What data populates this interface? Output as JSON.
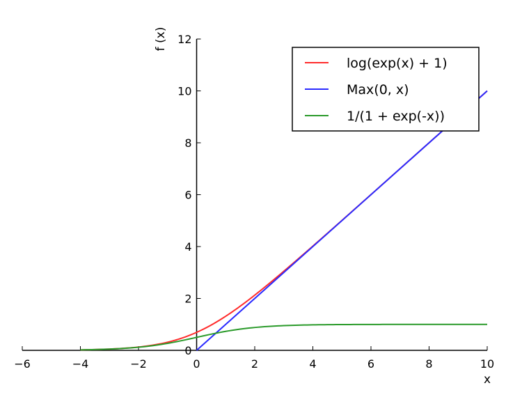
{
  "chart_data": {
    "type": "line",
    "xlabel": "x",
    "ylabel": "f (x)",
    "xlim": [
      -6,
      10
    ],
    "ylim": [
      0,
      12
    ],
    "xticks": [
      -6,
      -4,
      -2,
      0,
      2,
      4,
      6,
      8,
      10
    ],
    "yticks": [
      0,
      2,
      4,
      6,
      8,
      10,
      12
    ],
    "xtick_labels": [
      "−6",
      "−4",
      "−2",
      "0",
      "2",
      "4",
      "6",
      "8",
      "10"
    ],
    "ytick_labels": [
      "0",
      "2",
      "4",
      "6",
      "8",
      "10",
      "12"
    ],
    "grid": false,
    "legend_position": "top-right",
    "series": [
      {
        "name": "log(exp(x) + 1)",
        "color": "#ff2a2a",
        "x": [
          -4,
          -3,
          -2,
          -1,
          0,
          1,
          2,
          3,
          4,
          5,
          6,
          7,
          8,
          9,
          10
        ],
        "y": [
          0.018,
          0.049,
          0.127,
          0.313,
          0.693,
          1.313,
          2.127,
          3.049,
          4.018,
          5.007,
          6.002,
          7.001,
          8.0,
          9.0,
          10.0
        ]
      },
      {
        "name": "Max(0, x)",
        "color": "#2a2aff",
        "x": [
          0,
          10
        ],
        "y": [
          0,
          10
        ]
      },
      {
        "name": "1/(1 + exp(-x))",
        "color": "#2a9a2a",
        "x": [
          -4,
          -3,
          -2,
          -1,
          0,
          1,
          2,
          3,
          4,
          5,
          6,
          7,
          8,
          9,
          10
        ],
        "y": [
          0.018,
          0.047,
          0.119,
          0.269,
          0.5,
          0.731,
          0.881,
          0.953,
          0.982,
          0.993,
          0.998,
          0.999,
          1.0,
          1.0,
          1.0
        ]
      }
    ]
  }
}
